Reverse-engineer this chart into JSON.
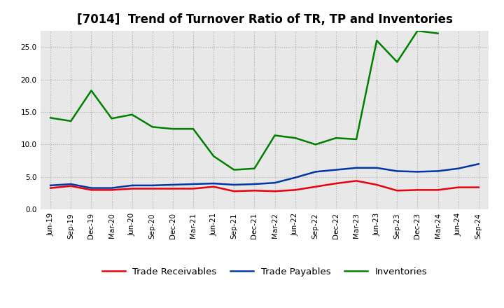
{
  "title": "[7014]  Trend of Turnover Ratio of TR, TP and Inventories",
  "x_labels": [
    "Jun-19",
    "Sep-19",
    "Dec-19",
    "Mar-20",
    "Jun-20",
    "Sep-20",
    "Dec-20",
    "Mar-21",
    "Jun-21",
    "Sep-21",
    "Dec-21",
    "Mar-22",
    "Jun-22",
    "Sep-22",
    "Dec-22",
    "Mar-23",
    "Jun-23",
    "Sep-23",
    "Dec-23",
    "Mar-24",
    "Jun-24",
    "Sep-24"
  ],
  "trade_receivables": [
    3.3,
    3.6,
    3.0,
    3.0,
    3.2,
    3.2,
    3.2,
    3.2,
    3.5,
    2.8,
    2.9,
    2.8,
    3.0,
    3.5,
    4.0,
    4.4,
    3.8,
    2.9,
    3.0,
    3.0,
    3.4,
    3.4
  ],
  "trade_payables": [
    3.7,
    3.9,
    3.3,
    3.3,
    3.7,
    3.7,
    3.8,
    3.9,
    4.0,
    3.8,
    3.9,
    4.1,
    4.9,
    5.8,
    6.1,
    6.4,
    6.4,
    5.9,
    5.8,
    5.9,
    6.3,
    7.0
  ],
  "inventories": [
    14.1,
    13.6,
    18.3,
    14.0,
    14.6,
    12.7,
    12.4,
    12.4,
    8.2,
    6.1,
    6.3,
    11.4,
    11.0,
    10.0,
    11.0,
    10.8,
    26.0,
    22.7,
    27.5,
    27.1,
    null,
    null
  ],
  "tr_color": "#e8000d",
  "tp_color": "#0037a5",
  "inv_color": "#008000",
  "background_color": "#ffffff",
  "plot_bg_color": "#e8e8e8",
  "grid_color": "#ffffff",
  "grid_minor_color": "#cccccc",
  "ylim": [
    0,
    27.5
  ],
  "yticks": [
    0.0,
    5.0,
    10.0,
    15.0,
    20.0,
    25.0
  ],
  "legend_labels": [
    "Trade Receivables",
    "Trade Payables",
    "Inventories"
  ],
  "title_fontsize": 12,
  "tick_fontsize": 7.5,
  "legend_fontsize": 9.5
}
